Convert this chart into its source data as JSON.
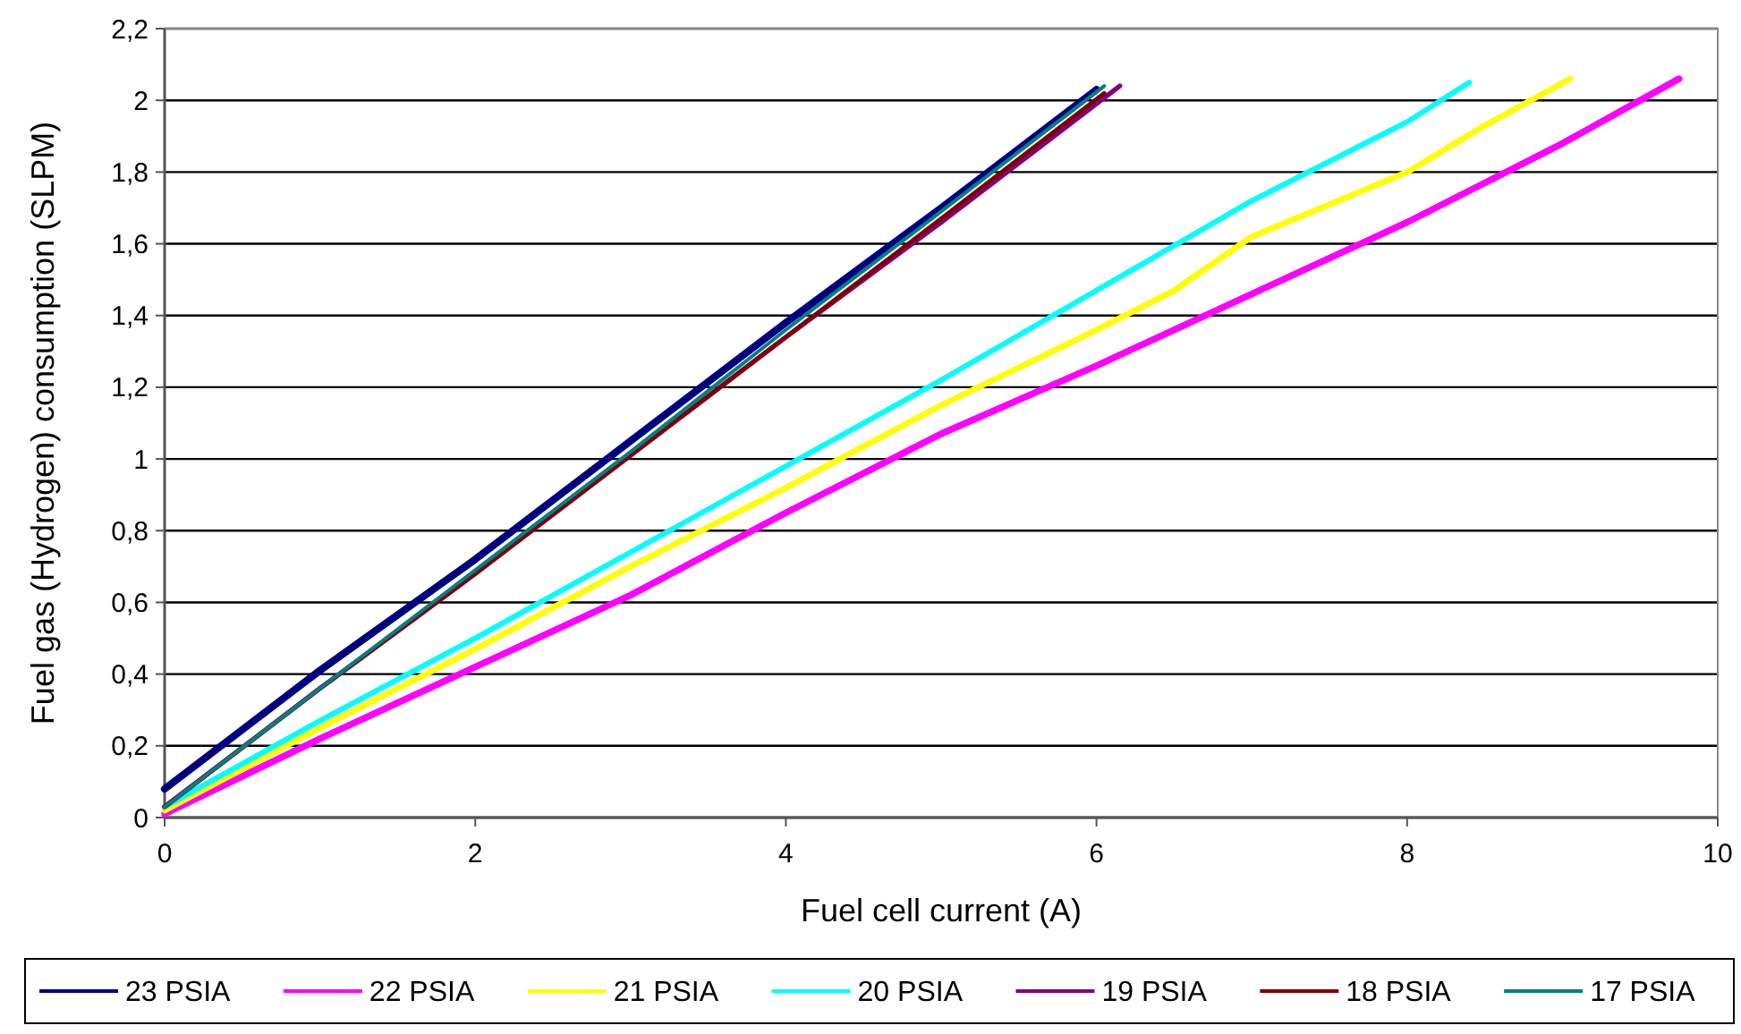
{
  "chart_data": {
    "type": "line",
    "xlabel": "Fuel cell current (A)",
    "ylabel": "Fuel gas (Hydrogen) consumption (SLPM)",
    "xlim": [
      0,
      10
    ],
    "xticks": [
      0,
      2,
      4,
      6,
      8,
      10
    ],
    "ylim": [
      0,
      2.2
    ],
    "yticks": [
      0,
      {
        "value": 0.2,
        "label": "0,2"
      },
      {
        "value": 0.4,
        "label": "0,4"
      },
      {
        "value": 0.6,
        "label": "0,6"
      },
      {
        "value": 0.8,
        "label": "0,8"
      },
      1,
      {
        "value": 1.2,
        "label": "1,2"
      },
      {
        "value": 1.4,
        "label": "1,4"
      },
      {
        "value": 1.6,
        "label": "1,6"
      },
      {
        "value": 1.8,
        "label": "1,8"
      },
      2,
      {
        "value": 2.2,
        "label": "2,2"
      }
    ],
    "grid": "y",
    "legend": "bottom",
    "marker": "none",
    "line_style": "solid",
    "series": [
      {
        "name": "23 PSIA",
        "color": "#000080",
        "x": [
          0,
          1,
          2,
          3,
          4,
          5,
          6
        ],
        "values": [
          0.08,
          0.41,
          0.72,
          1.05,
          1.38,
          1.7,
          2.03
        ]
      },
      {
        "name": "22 PSIA",
        "color": "#ff00ff",
        "x": [
          0,
          1,
          2,
          3,
          4,
          5,
          6,
          7,
          8,
          9,
          9.75
        ],
        "values": [
          0.01,
          0.22,
          0.42,
          0.62,
          0.85,
          1.07,
          1.26,
          1.46,
          1.66,
          1.88,
          2.06
        ]
      },
      {
        "name": "21 PSIA",
        "color": "#ffff00",
        "x": [
          0,
          1,
          2,
          3,
          4,
          5,
          6,
          6.5,
          7,
          8,
          8.5,
          9.05
        ],
        "values": [
          0.02,
          0.25,
          0.47,
          0.7,
          0.92,
          1.15,
          1.36,
          1.47,
          1.62,
          1.8,
          1.93,
          2.06
        ]
      },
      {
        "name": "20 PSIA",
        "color": "#00ffff",
        "x": [
          0,
          1,
          2,
          3,
          4,
          5,
          6,
          7,
          8,
          8.4
        ],
        "values": [
          0.03,
          0.27,
          0.5,
          0.74,
          0.98,
          1.22,
          1.47,
          1.72,
          1.94,
          2.05
        ]
      },
      {
        "name": "19 PSIA",
        "color": "#800080",
        "x": [
          0,
          1,
          2,
          3,
          4,
          5,
          6.15
        ],
        "values": [
          0.03,
          0.36,
          0.68,
          1.01,
          1.34,
          1.66,
          2.04
        ]
      },
      {
        "name": "18 PSIA",
        "color": "#800000",
        "x": [
          0,
          1,
          2,
          3,
          4,
          5,
          6.05
        ],
        "values": [
          0.03,
          0.36,
          0.68,
          1.01,
          1.34,
          1.67,
          2.02
        ]
      },
      {
        "name": "17 PSIA",
        "color": "#008080",
        "x": [
          0,
          1,
          2,
          3,
          4,
          5,
          6.05
        ],
        "values": [
          0.03,
          0.36,
          0.69,
          1.02,
          1.36,
          1.69,
          2.04
        ]
      }
    ]
  }
}
